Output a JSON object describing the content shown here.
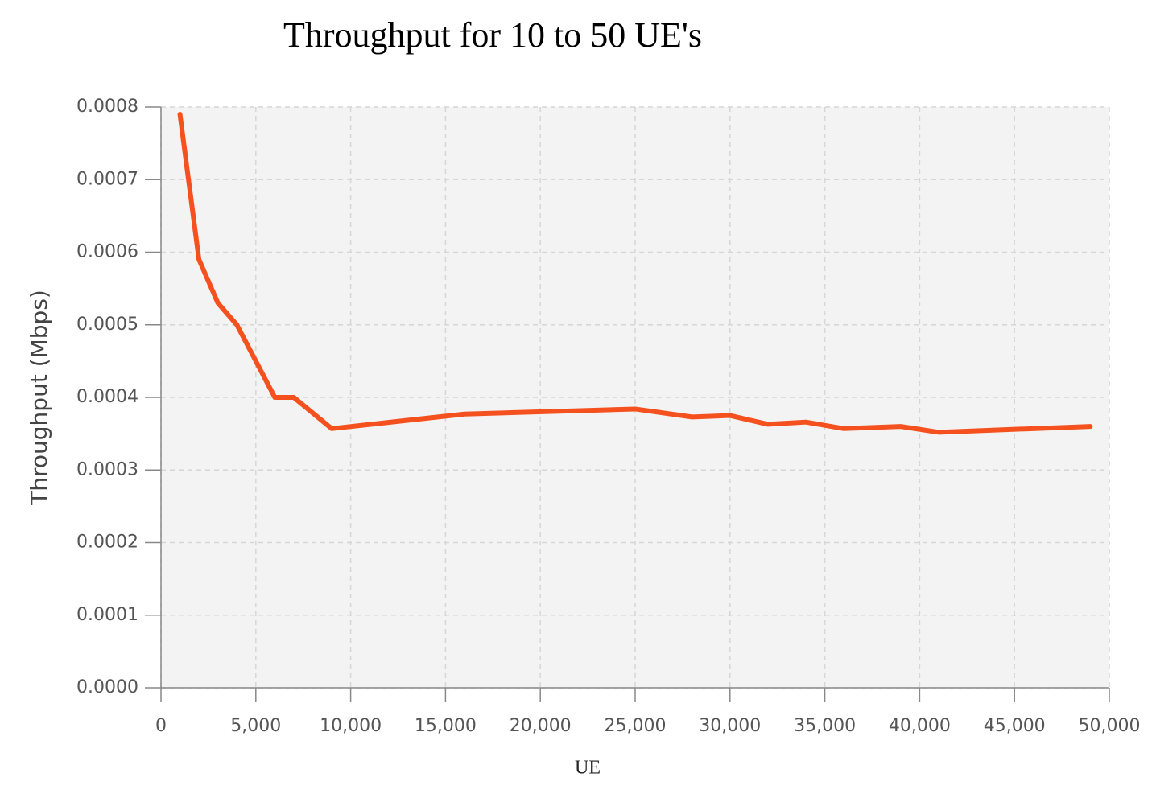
{
  "chart_data": {
    "type": "line",
    "title": "Throughput for 10 to 50 UE's",
    "x_label": "UE",
    "y_label": "Throughput (Mbps)",
    "x": [
      1000,
      2000,
      3000,
      4000,
      6000,
      7000,
      9000,
      16000,
      25000,
      28000,
      30000,
      32000,
      34000,
      36000,
      39000,
      41000,
      49000
    ],
    "series": [
      {
        "name": "Throughput",
        "color": "#f4511e",
        "values": [
          0.00079,
          0.00059,
          0.00053,
          0.0005,
          0.0004,
          0.0004,
          0.000357,
          0.000377,
          0.000384,
          0.000373,
          0.000375,
          0.000363,
          0.000366,
          0.000357,
          0.00036,
          0.000352,
          0.00036
        ]
      }
    ],
    "xlim": [
      0,
      50000
    ],
    "xticks": [
      0,
      {
        "value": 5000,
        "label": "5,000"
      },
      {
        "value": 10000,
        "label": "10,000"
      },
      {
        "value": 15000,
        "label": "15,000"
      },
      {
        "value": 20000,
        "label": "20,000"
      },
      {
        "value": 25000,
        "label": "25,000"
      },
      {
        "value": 30000,
        "label": "30,000"
      },
      {
        "value": 35000,
        "label": "35,000"
      },
      {
        "value": 40000,
        "label": "40,000"
      },
      {
        "value": 45000,
        "label": "45,000"
      },
      {
        "value": 50000,
        "label": "50,000"
      }
    ],
    "ylim": [
      0,
      0.0008
    ],
    "yticks": [
      {
        "value": 0,
        "label": "0.0000"
      },
      {
        "value": 0.0001,
        "label": "0.0001"
      },
      {
        "value": 0.0002,
        "label": "0.0002"
      },
      {
        "value": 0.0003,
        "label": "0.0003"
      },
      {
        "value": 0.0004,
        "label": "0.0004"
      },
      {
        "value": 0.0005,
        "label": "0.0005"
      },
      {
        "value": 0.0006,
        "label": "0.0006"
      },
      {
        "value": 0.0007,
        "label": "0.0007"
      },
      {
        "value": 0.0008,
        "label": "0.0008"
      }
    ],
    "grid": true
  }
}
